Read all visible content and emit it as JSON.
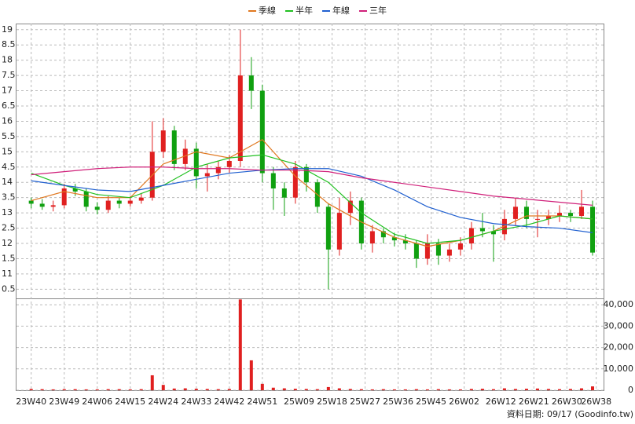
{
  "chart_data": {
    "type": "candlestick",
    "footer": "資料日期: 09/17 (Goodinfo.tw)",
    "grid": true,
    "up_color": "#e02020",
    "down_color": "#10a010",
    "volume_color": "#e02020",
    "xlim": [
      -4,
      156
    ],
    "xticks": [
      {
        "value": 0,
        "label": "23W40"
      },
      {
        "value": 9,
        "label": "23W49"
      },
      {
        "value": 18,
        "label": "24W06"
      },
      {
        "value": 27,
        "label": "24W15"
      },
      {
        "value": 36,
        "label": "24W24"
      },
      {
        "value": 45,
        "label": "24W33"
      },
      {
        "value": 54,
        "label": "24W42"
      },
      {
        "value": 63,
        "label": "24W51"
      },
      {
        "value": 73,
        "label": "25W09"
      },
      {
        "value": 82,
        "label": "25W18"
      },
      {
        "value": 91,
        "label": "25W27"
      },
      {
        "value": 100,
        "label": "25W36"
      },
      {
        "value": 109,
        "label": "25W45"
      },
      {
        "value": 118,
        "label": "26W02"
      },
      {
        "value": 128,
        "label": "26W12"
      },
      {
        "value": 137,
        "label": "26W21"
      },
      {
        "value": 146,
        "label": "26W30"
      },
      {
        "value": 154,
        "label": "26W38"
      }
    ],
    "ylim": [
      10.2,
      19.2
    ],
    "yticks": [
      19,
      {
        "value": 18.5,
        "label": "8.5"
      },
      18,
      {
        "value": 17.5,
        "label": "7.5"
      },
      17,
      {
        "value": 16.5,
        "label": "6.5"
      },
      16,
      {
        "value": 15.5,
        "label": "5.5"
      },
      15,
      {
        "value": 14.5,
        "label": "4.5"
      },
      14,
      {
        "value": 13.5,
        "label": "3.5"
      },
      13,
      {
        "value": 12.5,
        "label": "2.5"
      },
      12,
      {
        "value": 11.5,
        "label": "1.5"
      },
      11,
      {
        "value": 10.5,
        "label": "0.5"
      }
    ],
    "volume_ylim": [
      0,
      43000
    ],
    "volume_yticks": [
      {
        "value": 40000,
        "label": "40,000"
      },
      {
        "value": 30000,
        "label": "30,000"
      },
      {
        "value": 20000,
        "label": "20,000"
      },
      {
        "value": 10000,
        "label": "10,000"
      },
      0
    ],
    "x": [
      0,
      3,
      6,
      9,
      12,
      15,
      18,
      21,
      24,
      27,
      30,
      33,
      36,
      39,
      42,
      45,
      48,
      51,
      54,
      57,
      60,
      63,
      66,
      69,
      72,
      75,
      78,
      81,
      84,
      87,
      90,
      93,
      96,
      99,
      102,
      105,
      108,
      111,
      114,
      117,
      120,
      123,
      126,
      129,
      132,
      135,
      138,
      141,
      144,
      147,
      150,
      153
    ],
    "open": [
      13.4,
      13.3,
      13.2,
      13.25,
      13.8,
      13.7,
      13.2,
      13.1,
      13.4,
      13.3,
      13.4,
      13.5,
      15.0,
      15.7,
      14.6,
      15.1,
      14.2,
      14.3,
      14.5,
      14.7,
      17.5,
      17.0,
      14.3,
      13.8,
      13.5,
      14.5,
      14.0,
      13.2,
      11.8,
      13.0,
      13.4,
      12.0,
      12.4,
      12.2,
      12.1,
      12.0,
      11.5,
      12.0,
      11.6,
      11.8,
      12.0,
      12.5,
      12.4,
      12.3,
      12.8,
      13.2,
      12.8,
      12.8,
      12.9,
      13.0,
      12.9,
      13.2
    ],
    "high": [
      13.5,
      13.45,
      13.4,
      13.95,
      13.95,
      13.8,
      13.35,
      13.55,
      13.5,
      13.55,
      13.65,
      16.0,
      16.1,
      15.85,
      15.4,
      15.3,
      14.6,
      14.7,
      14.9,
      19.0,
      18.1,
      17.2,
      14.5,
      14.0,
      14.7,
      14.6,
      14.1,
      13.3,
      13.5,
      13.7,
      13.5,
      12.6,
      12.5,
      12.35,
      12.3,
      12.1,
      12.3,
      12.15,
      12.0,
      12.2,
      12.7,
      13.0,
      12.6,
      13.1,
      13.5,
      13.4,
      13.1,
      13.1,
      13.25,
      13.1,
      13.75,
      13.4
    ],
    "low": [
      13.15,
      13.1,
      13.05,
      13.15,
      13.55,
      13.05,
      12.95,
      13.0,
      13.15,
      13.2,
      13.3,
      13.4,
      14.8,
      14.4,
      14.4,
      13.8,
      13.7,
      14.1,
      14.3,
      14.5,
      16.4,
      14.0,
      13.1,
      12.9,
      13.3,
      13.7,
      13.0,
      10.5,
      11.6,
      12.6,
      11.8,
      11.7,
      12.0,
      11.9,
      11.8,
      11.2,
      11.3,
      11.3,
      11.4,
      11.6,
      11.8,
      12.2,
      11.4,
      12.1,
      12.6,
      12.5,
      12.2,
      12.6,
      12.7,
      12.7,
      12.8,
      11.6
    ],
    "close": [
      13.3,
      13.2,
      13.25,
      13.8,
      13.7,
      13.2,
      13.1,
      13.4,
      13.3,
      13.4,
      13.5,
      15.0,
      15.7,
      14.6,
      15.1,
      14.2,
      14.3,
      14.5,
      14.7,
      17.5,
      17.0,
      14.3,
      13.8,
      13.5,
      14.5,
      14.0,
      13.2,
      11.8,
      13.0,
      13.4,
      12.0,
      12.4,
      12.2,
      12.1,
      12.0,
      11.5,
      12.0,
      11.6,
      11.8,
      12.0,
      12.5,
      12.4,
      12.3,
      12.8,
      13.2,
      12.8,
      12.8,
      12.9,
      13.0,
      12.9,
      13.2,
      11.7
    ],
    "volume": [
      600,
      500,
      400,
      500,
      500,
      400,
      400,
      500,
      500,
      400,
      500,
      7000,
      2500,
      800,
      900,
      700,
      600,
      500,
      600,
      42500,
      14000,
      3000,
      1200,
      900,
      700,
      600,
      500,
      1500,
      900,
      600,
      500,
      400,
      500,
      400,
      400,
      500,
      400,
      500,
      400,
      400,
      600,
      700,
      500,
      900,
      600,
      700,
      800,
      600,
      500,
      600,
      900,
      1800
    ],
    "line_x": [
      0,
      9,
      18,
      27,
      36,
      45,
      54,
      63,
      72,
      81,
      90,
      99,
      108,
      117,
      126,
      135,
      144,
      153
    ],
    "lines": [
      {
        "name": "季線",
        "color": "#e07820",
        "values": [
          13.4,
          13.7,
          13.5,
          13.5,
          14.6,
          15.0,
          14.8,
          15.4,
          14.2,
          13.3,
          12.7,
          12.2,
          11.9,
          12.1,
          12.4,
          12.9,
          12.9,
          12.8
        ]
      },
      {
        "name": "半年",
        "color": "#20c020",
        "values": [
          14.3,
          13.9,
          13.6,
          13.5,
          13.9,
          14.5,
          14.8,
          14.9,
          14.6,
          14.0,
          13.0,
          12.3,
          12.0,
          12.1,
          12.4,
          12.6,
          12.9,
          12.8
        ]
      },
      {
        "name": "年線",
        "color": "#2060d0",
        "values": [
          14.05,
          13.9,
          13.75,
          13.7,
          13.9,
          14.1,
          14.3,
          14.4,
          14.45,
          14.45,
          14.2,
          13.75,
          13.2,
          12.85,
          12.65,
          12.55,
          12.5,
          12.35
        ]
      },
      {
        "name": "三年",
        "color": "#d0207a",
        "values": [
          14.25,
          14.35,
          14.45,
          14.5,
          14.5,
          14.45,
          14.45,
          14.4,
          14.4,
          14.35,
          14.15,
          14.0,
          13.85,
          13.7,
          13.55,
          13.45,
          13.35,
          13.25
        ]
      }
    ]
  }
}
